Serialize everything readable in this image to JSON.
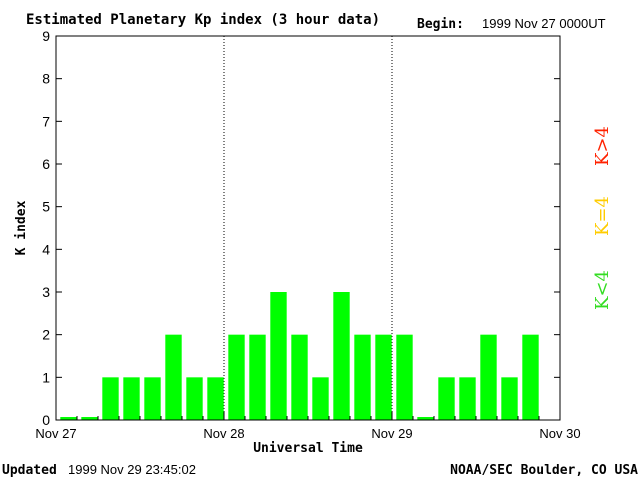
{
  "chart_data": {
    "type": "bar",
    "title": "Estimated Planetary Kp index (3 hour data)",
    "begin_label": "Begin:",
    "begin_value": "1999 Nov 27 0000UT",
    "xlabel": "Universal Time",
    "ylabel": "K index",
    "ylim": [
      0,
      9
    ],
    "yticks": [
      "0",
      "1",
      "2",
      "3",
      "4",
      "5",
      "6",
      "7",
      "8",
      "9"
    ],
    "x_range_days": [
      0,
      3
    ],
    "xticks": [
      {
        "day": 0,
        "label": "Nov 27"
      },
      {
        "day": 1,
        "label": "Nov 28"
      },
      {
        "day": 2,
        "label": "Nov 29"
      },
      {
        "day": 3,
        "label": "Nov 30"
      }
    ],
    "day_separators": [
      1,
      2
    ],
    "values": [
      0.07,
      0.07,
      1,
      1,
      1,
      2,
      1,
      1,
      2,
      2,
      3,
      2,
      1,
      3,
      2,
      2,
      2,
      0.07,
      1,
      1,
      2,
      1,
      2
    ],
    "bar_color": "#00ff00",
    "legend": [
      {
        "label": "K<4",
        "color": "#33dd22"
      },
      {
        "label": "K=4",
        "color": "#ffcc00"
      },
      {
        "label": "K>4",
        "color": "#ff2200"
      }
    ],
    "legend_placement": "right-vertical"
  },
  "footer": {
    "updated_label": "Updated",
    "updated_value": "1999 Nov 29 23:45:02",
    "source": "NOAA/SEC Boulder, CO USA"
  }
}
